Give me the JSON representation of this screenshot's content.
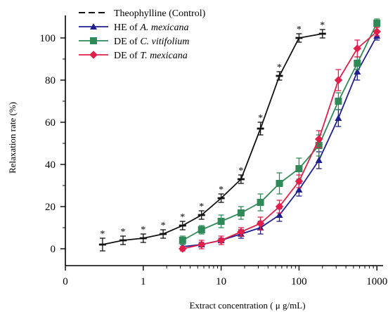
{
  "chart_data": {
    "type": "line",
    "xlabel": "Extract concentration ( μ g/mL)",
    "ylabel": "Relaxation rate (%)",
    "xscale": "log",
    "xlim": [
      0.1,
      1200
    ],
    "ylim": [
      -8,
      108
    ],
    "xticks": [
      {
        "value": 0.1,
        "label": "0"
      },
      {
        "value": 1,
        "label": "1"
      },
      {
        "value": 10,
        "label": "10"
      },
      {
        "value": 100,
        "label": "100"
      },
      {
        "value": 1000,
        "label": "1000"
      }
    ],
    "yticks": [
      0,
      20,
      40,
      60,
      80,
      100
    ],
    "legend_position": "top-left",
    "series": [
      {
        "name": "Theophylline (Control)",
        "name_parts": [
          {
            "text": "Theophylline (Control)",
            "italic": false
          }
        ],
        "color": "#111111",
        "marker": "dash",
        "dashed": true,
        "x": [
          0.3,
          0.55,
          1,
          1.8,
          3.2,
          5.6,
          10,
          18,
          32,
          56,
          100,
          200
        ],
        "y": [
          2,
          4,
          5,
          7,
          11,
          16,
          24,
          33,
          57,
          82,
          100,
          102
        ],
        "err": [
          3,
          2,
          2,
          2,
          2,
          2,
          2,
          2,
          3,
          2,
          2,
          2
        ],
        "significance": [
          "*",
          "*",
          "*",
          "*",
          "*",
          "*",
          "*",
          "*",
          "*",
          "*",
          "*",
          "*"
        ]
      },
      {
        "name": "HE of A. mexicana",
        "name_parts": [
          {
            "text": "HE of ",
            "italic": false
          },
          {
            "text": "A. mexicana",
            "italic": true
          }
        ],
        "color": "#1f1f8f",
        "marker": "triangle",
        "dashed": false,
        "x": [
          3.2,
          5.6,
          10,
          18,
          32,
          56,
          100,
          180,
          320,
          560,
          1000
        ],
        "y": [
          1,
          2,
          4,
          7,
          10,
          16,
          28,
          42,
          62,
          84,
          101
        ],
        "err": [
          1,
          1,
          1,
          2,
          3,
          3,
          3,
          4,
          4,
          4,
          2
        ]
      },
      {
        "name": "DE of C. vitifolium",
        "name_parts": [
          {
            "text": "DE of ",
            "italic": false
          },
          {
            "text": "C. vitifolium",
            "italic": true
          }
        ],
        "color": "#2f8a57",
        "marker": "square",
        "dashed": false,
        "x": [
          3.2,
          5.6,
          10,
          18,
          32,
          56,
          100,
          180,
          320,
          560,
          1000
        ],
        "y": [
          4,
          9,
          13,
          17,
          22,
          31,
          38,
          49,
          70,
          88,
          107
        ],
        "err": [
          2,
          2,
          3,
          3,
          4,
          5,
          5,
          5,
          4,
          3,
          2
        ]
      },
      {
        "name": "DE of T. mexicana",
        "name_parts": [
          {
            "text": "DE of ",
            "italic": false
          },
          {
            "text": "T. mexicana",
            "italic": true
          }
        ],
        "color": "#e0204a",
        "marker": "diamond",
        "dashed": false,
        "x": [
          3.2,
          5.6,
          10,
          18,
          32,
          56,
          100,
          180,
          320,
          560,
          1000
        ],
        "y": [
          0,
          2,
          4,
          8,
          12,
          20,
          32,
          52,
          80,
          95,
          103
        ],
        "err": [
          1,
          2,
          2,
          2,
          3,
          3,
          3,
          4,
          5,
          4,
          2
        ]
      }
    ]
  }
}
